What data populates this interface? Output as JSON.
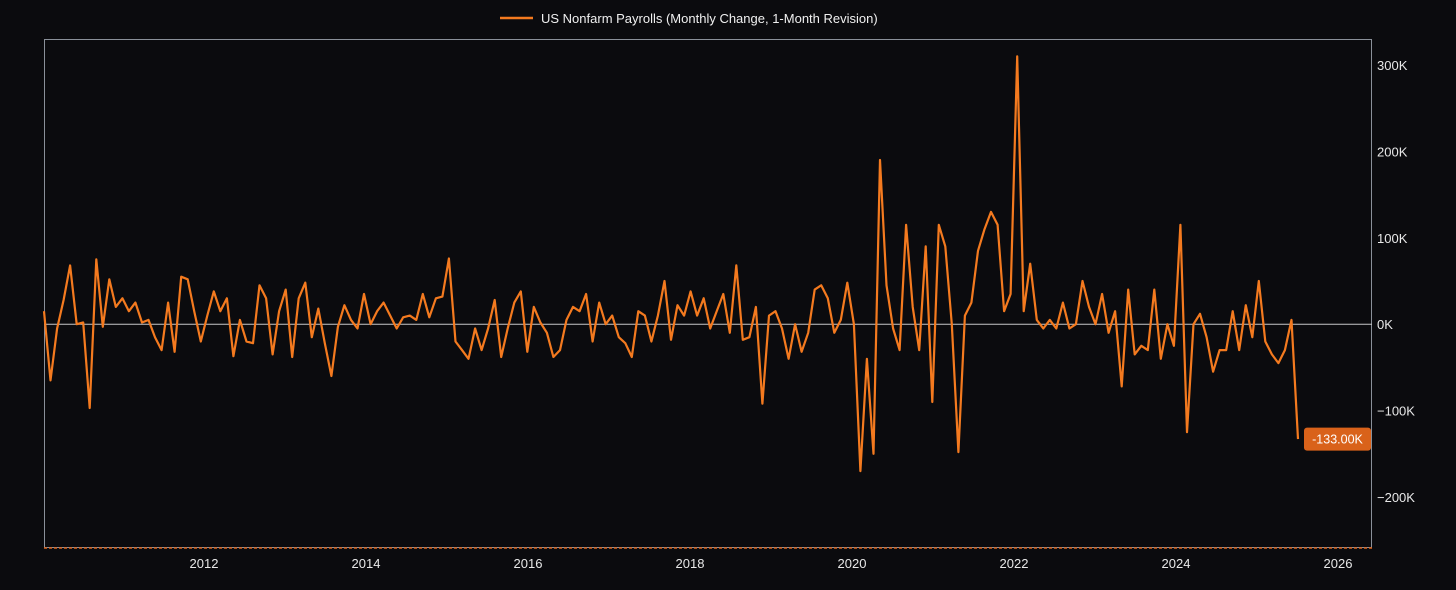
{
  "chart_data": {
    "type": "line",
    "title": "",
    "xlabel": "",
    "ylabel": "",
    "legend_position": "top-center",
    "grid": false,
    "colors": {
      "background": "#0b0b0e",
      "series": "#f47a1f",
      "axis": "#8a9099",
      "zero_line": "#c8c8c8",
      "badge": "#d9621a",
      "text": "#e8e8e8"
    },
    "x_range": [
      2010.0,
      2026.4
    ],
    "ylim": [
      -260,
      340
    ],
    "x_ticks": [
      {
        "value": 2012,
        "label": "2012"
      },
      {
        "value": 2014,
        "label": "2014"
      },
      {
        "value": 2016,
        "label": "2016"
      },
      {
        "value": 2018,
        "label": "2018"
      },
      {
        "value": 2020,
        "label": "2020"
      },
      {
        "value": 2022,
        "label": "2022"
      },
      {
        "value": 2024,
        "label": "2024"
      },
      {
        "value": 2026,
        "label": "2026"
      }
    ],
    "y_ticks": [
      {
        "value": 300,
        "label": "300K"
      },
      {
        "value": 200,
        "label": "200K"
      },
      {
        "value": 100,
        "label": "100K"
      },
      {
        "value": 0,
        "label": "0K"
      },
      {
        "value": -100,
        "label": "−100K"
      },
      {
        "value": -200,
        "label": "−200K"
      }
    ],
    "last_value_label": "-133.00K",
    "series": [
      {
        "name": "US Nonfarm Payrolls (Monthly Change, 1-Month Revision)",
        "unit": "thousands of jobs",
        "start_date": "2010-01",
        "values": [
          15,
          -65,
          -5,
          28,
          68,
          0,
          2,
          -97,
          75,
          -3,
          52,
          20,
          30,
          15,
          25,
          2,
          5,
          -15,
          -30,
          25,
          -32,
          55,
          52,
          15,
          -20,
          10,
          38,
          15,
          30,
          -37,
          5,
          -20,
          -22,
          45,
          30,
          -35,
          15,
          40,
          -38,
          30,
          48,
          -15,
          18,
          -22,
          -60,
          -3,
          22,
          5,
          -5,
          35,
          0,
          15,
          25,
          10,
          -5,
          8,
          10,
          5,
          35,
          8,
          30,
          32,
          76,
          -20,
          -30,
          -40,
          -5,
          -30,
          -5,
          28,
          -38,
          -5,
          25,
          38,
          -32,
          20,
          2,
          -10,
          -38,
          -30,
          5,
          20,
          15,
          35,
          -20,
          25,
          0,
          10,
          -15,
          -22,
          -38,
          15,
          10,
          -20,
          10,
          50,
          -18,
          22,
          10,
          38,
          10,
          30,
          -5,
          15,
          35,
          -10,
          68,
          -18,
          -15,
          20,
          -92,
          10,
          15,
          -5,
          -40,
          0,
          -32,
          -10,
          40,
          45,
          30,
          -10,
          5,
          48,
          0,
          -170,
          -40,
          -150,
          190,
          45,
          -5,
          -30,
          115,
          20,
          -30,
          90,
          -90,
          115,
          90,
          0,
          -148,
          10,
          25,
          85,
          110,
          130,
          115,
          15,
          35,
          310,
          15,
          70,
          5,
          -5,
          5,
          -5,
          25,
          -5,
          0,
          50,
          20,
          0,
          35,
          -10,
          15,
          -72,
          40,
          -35,
          -25,
          -30,
          40,
          -40,
          0,
          -25,
          115,
          -125,
          0,
          12,
          -15,
          -55,
          -30,
          -30,
          15,
          -30,
          22,
          -15,
          50,
          -20,
          -35,
          -45,
          -30,
          5,
          -133
        ]
      }
    ]
  }
}
